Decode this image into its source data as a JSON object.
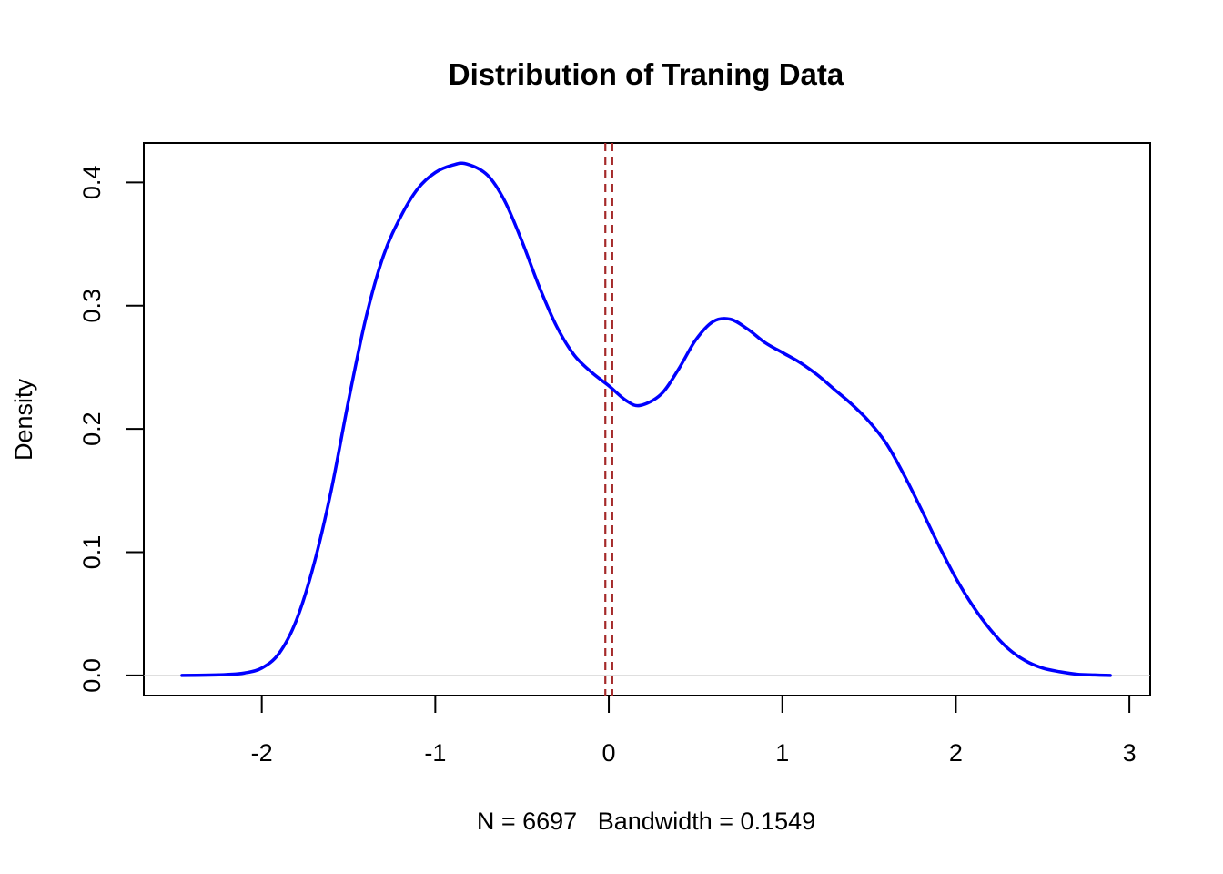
{
  "chart_data": {
    "type": "line",
    "title": "Distribution of Traning Data",
    "xlabel": "N = 6697   Bandwidth = 0.1549",
    "ylabel": "Density",
    "xlim": [
      -2.68,
      3.12
    ],
    "ylim": [
      -0.0163,
      0.432
    ],
    "x_ticks": [
      "-2",
      "-1",
      "0",
      "1",
      "2",
      "3"
    ],
    "y_ticks": [
      "0.0",
      "0.1",
      "0.2",
      "0.3",
      "0.4"
    ],
    "grid": false,
    "series": [
      {
        "color": "#0000ff",
        "x": [
          -2.46,
          -2.3,
          -2.2,
          -2.1,
          -2.0,
          -1.9,
          -1.8,
          -1.7,
          -1.6,
          -1.5,
          -1.4,
          -1.3,
          -1.2,
          -1.1,
          -1.0,
          -0.9,
          -0.82,
          -0.7,
          -0.6,
          -0.5,
          -0.4,
          -0.3,
          -0.2,
          -0.1,
          0.0,
          0.1,
          0.18,
          0.3,
          0.4,
          0.5,
          0.6,
          0.7,
          0.8,
          0.9,
          1.0,
          1.1,
          1.2,
          1.3,
          1.4,
          1.5,
          1.6,
          1.7,
          1.8,
          1.9,
          2.0,
          2.1,
          2.2,
          2.3,
          2.4,
          2.5,
          2.6,
          2.7,
          2.8,
          2.89
        ],
        "y": [
          0.0,
          0.0003,
          0.0008,
          0.002,
          0.006,
          0.018,
          0.045,
          0.09,
          0.15,
          0.223,
          0.29,
          0.34,
          0.372,
          0.395,
          0.408,
          0.414,
          0.415,
          0.406,
          0.385,
          0.352,
          0.315,
          0.283,
          0.26,
          0.246,
          0.235,
          0.223,
          0.219,
          0.228,
          0.248,
          0.272,
          0.287,
          0.289,
          0.281,
          0.27,
          0.262,
          0.254,
          0.244,
          0.232,
          0.22,
          0.206,
          0.188,
          0.163,
          0.135,
          0.106,
          0.079,
          0.056,
          0.037,
          0.022,
          0.012,
          0.006,
          0.003,
          0.001,
          0.0004,
          0.0
        ]
      }
    ],
    "reference_lines": [
      {
        "x": -0.02,
        "color": "#a52a2a",
        "style": "dashed"
      },
      {
        "x": 0.02,
        "color": "#a52a2a",
        "style": "dashed"
      }
    ],
    "baseline": {
      "y": 0.0,
      "color": "#cccccc"
    }
  }
}
